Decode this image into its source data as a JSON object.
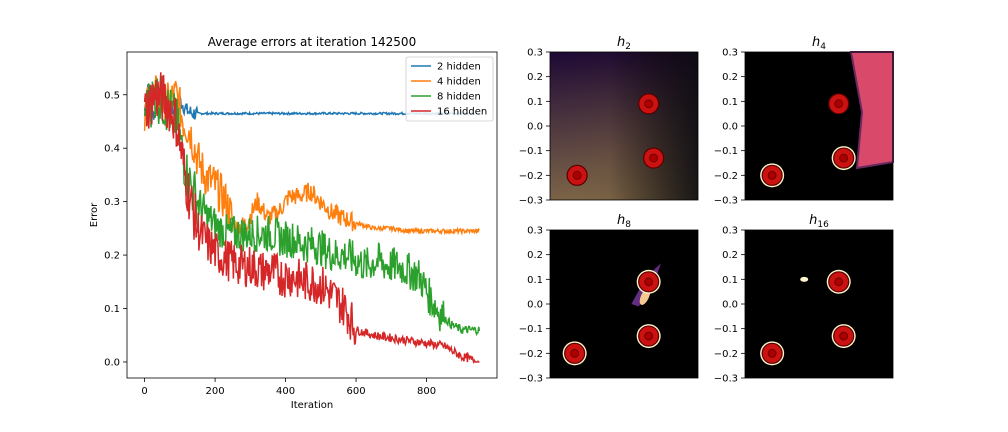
{
  "chart_data": [
    {
      "type": "line",
      "title": "Average errors at iteration 142500",
      "xlabel": "Iteration",
      "ylabel": "Error",
      "xlim": [
        -50,
        1000
      ],
      "ylim": [
        -0.03,
        0.58
      ],
      "xticks": [
        0,
        200,
        400,
        600,
        800
      ],
      "yticks": [
        0.0,
        0.1,
        0.2,
        0.3,
        0.4,
        0.5
      ],
      "xtick_labels": [
        "0",
        "200",
        "400",
        "600",
        "800"
      ],
      "ytick_labels": [
        "0.0",
        "0.1",
        "0.2",
        "0.3",
        "0.4",
        "0.5"
      ],
      "grid": false,
      "legend_position": "top-right",
      "series": [
        {
          "name": "2 hidden",
          "color": "#1f77b4",
          "x": [
            0,
            10,
            20,
            40,
            60,
            80,
            100,
            120,
            140,
            160,
            200,
            300,
            400,
            500,
            600,
            700,
            800,
            900,
            950
          ],
          "y": [
            0.47,
            0.52,
            0.46,
            0.48,
            0.49,
            0.47,
            0.49,
            0.47,
            0.465,
            0.465,
            0.465,
            0.465,
            0.465,
            0.465,
            0.465,
            0.465,
            0.465,
            0.465,
            0.465
          ]
        },
        {
          "name": "4 hidden",
          "color": "#ff7f0e",
          "x": [
            0,
            30,
            60,
            90,
            110,
            130,
            150,
            170,
            200,
            230,
            260,
            290,
            320,
            350,
            380,
            410,
            440,
            470,
            500,
            530,
            560,
            600,
            650,
            700,
            750,
            800,
            850,
            900,
            950
          ],
          "y": [
            0.47,
            0.5,
            0.48,
            0.5,
            0.45,
            0.43,
            0.38,
            0.35,
            0.33,
            0.3,
            0.25,
            0.26,
            0.3,
            0.27,
            0.28,
            0.31,
            0.31,
            0.32,
            0.3,
            0.28,
            0.27,
            0.26,
            0.25,
            0.25,
            0.245,
            0.245,
            0.245,
            0.245,
            0.245
          ]
        },
        {
          "name": "8 hidden",
          "color": "#2ca02c",
          "x": [
            0,
            30,
            60,
            90,
            120,
            150,
            180,
            210,
            240,
            270,
            300,
            330,
            360,
            390,
            420,
            450,
            480,
            510,
            540,
            570,
            600,
            630,
            660,
            690,
            720,
            750,
            780,
            810,
            840,
            870,
            900,
            950
          ],
          "y": [
            0.47,
            0.5,
            0.48,
            0.45,
            0.35,
            0.3,
            0.27,
            0.25,
            0.24,
            0.24,
            0.24,
            0.24,
            0.24,
            0.23,
            0.23,
            0.22,
            0.22,
            0.21,
            0.2,
            0.2,
            0.19,
            0.18,
            0.19,
            0.18,
            0.18,
            0.17,
            0.16,
            0.12,
            0.09,
            0.07,
            0.06,
            0.06
          ]
        },
        {
          "name": "16 hidden",
          "color": "#d62728",
          "x": [
            0,
            30,
            60,
            90,
            120,
            150,
            180,
            210,
            240,
            270,
            300,
            330,
            360,
            390,
            420,
            450,
            480,
            510,
            540,
            570,
            600,
            650,
            700,
            750,
            800,
            850,
            900,
            950
          ],
          "y": [
            0.47,
            0.5,
            0.49,
            0.45,
            0.33,
            0.25,
            0.22,
            0.2,
            0.19,
            0.18,
            0.18,
            0.17,
            0.17,
            0.16,
            0.16,
            0.15,
            0.15,
            0.14,
            0.12,
            0.1,
            0.06,
            0.05,
            0.045,
            0.04,
            0.035,
            0.03,
            0.01,
            0.0
          ]
        }
      ]
    },
    {
      "type": "heatmap",
      "title": "h",
      "title_subscript": "2",
      "xlim": [
        -0.3,
        0.3
      ],
      "ylim": [
        -0.3,
        0.3
      ],
      "yticks": [
        -0.3,
        -0.2,
        -0.1,
        0.0,
        0.1,
        0.2,
        0.3
      ],
      "ytick_labels": [
        "−0.3",
        "−0.2",
        "−0.1",
        "0.0",
        "0.1",
        "0.2",
        "0.3"
      ],
      "points": [
        [
          0.1,
          0.09
        ],
        [
          0.12,
          -0.13
        ],
        [
          -0.19,
          -0.2
        ]
      ],
      "colors": {
        "top_left": "#2b0a4a",
        "top_right": "#0a0a10",
        "bottom_left": "#8a7a50",
        "bottom_right": "#3a2018",
        "point": "#cc1111"
      }
    },
    {
      "type": "heatmap",
      "title": "h",
      "title_subscript": "4",
      "xlim": [
        -0.3,
        0.3
      ],
      "ylim": [
        -0.3,
        0.3
      ],
      "yticks": [
        -0.3,
        -0.2,
        -0.1,
        0.0,
        0.1,
        0.2,
        0.3
      ],
      "ytick_labels": [
        "−0.3",
        "−0.2",
        "−0.1",
        "0.0",
        "0.1",
        "0.2",
        "0.3"
      ],
      "points": [
        [
          0.08,
          0.09
        ],
        [
          0.1,
          -0.13
        ],
        [
          -0.19,
          -0.2
        ]
      ],
      "colors": {
        "background": "#000000",
        "region": "#d94a6a",
        "point": "#cc1111",
        "halo": "#fff5cc"
      }
    },
    {
      "type": "heatmap",
      "title": "h",
      "title_subscript": "8",
      "xlim": [
        -0.3,
        0.3
      ],
      "ylim": [
        -0.3,
        0.3
      ],
      "yticks": [
        -0.3,
        -0.2,
        -0.1,
        0.0,
        0.1,
        0.2,
        0.3
      ],
      "ytick_labels": [
        "−0.3",
        "−0.2",
        "−0.1",
        "0.0",
        "0.1",
        "0.2",
        "0.3"
      ],
      "points": [
        [
          0.1,
          0.09
        ],
        [
          0.1,
          -0.13
        ],
        [
          -0.2,
          -0.2
        ]
      ],
      "colors": {
        "background": "#000000",
        "point": "#cc1111",
        "halo": "#fff5cc",
        "streak": "#7a3aa0"
      }
    },
    {
      "type": "heatmap",
      "title": "h",
      "title_subscript": "16",
      "xlim": [
        -0.3,
        0.3
      ],
      "ylim": [
        -0.3,
        0.3
      ],
      "yticks": [
        -0.3,
        -0.2,
        -0.1,
        0.0,
        0.1,
        0.2,
        0.3
      ],
      "ytick_labels": [
        "−0.3",
        "−0.2",
        "−0.1",
        "0.0",
        "0.1",
        "0.2",
        "0.3"
      ],
      "points": [
        [
          0.08,
          0.09
        ],
        [
          0.1,
          -0.13
        ],
        [
          -0.19,
          -0.2
        ],
        [
          -0.06,
          0.1
        ]
      ],
      "colors": {
        "background": "#000000",
        "point": "#cc1111",
        "halo": "#fff5cc"
      }
    }
  ]
}
